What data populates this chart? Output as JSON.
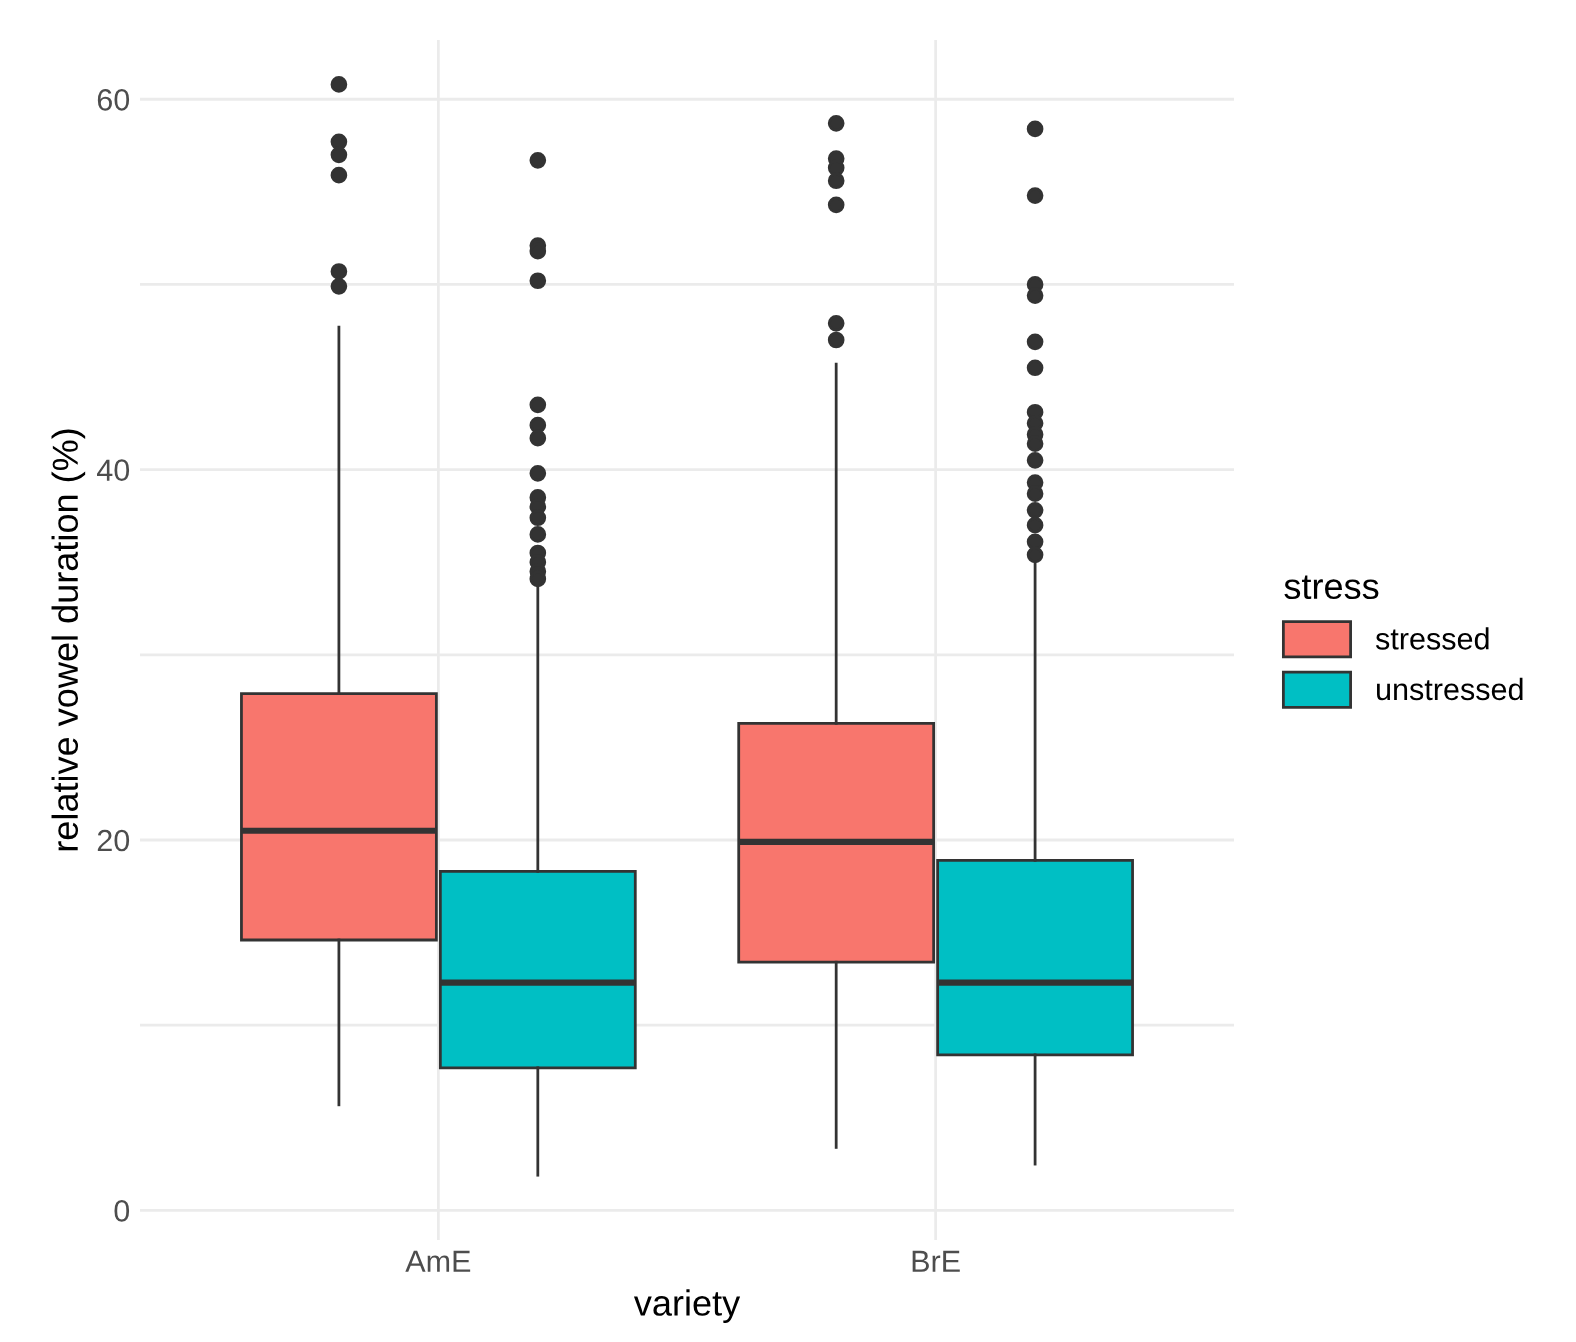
{
  "chart_data": {
    "type": "box",
    "xlabel": "variety",
    "ylabel": "relative vowel duration (%)",
    "legend_title": "stress",
    "legend": "right",
    "categories": [
      "AmE",
      "BrE"
    ],
    "ylim": [
      -1.6,
      63.2
    ],
    "yticks": [
      0,
      {
        "value": 10,
        "label": null
      },
      20,
      {
        "value": 30,
        "label": null
      },
      40,
      {
        "value": 50,
        "label": null
      },
      60
    ],
    "grid": true,
    "series": [
      {
        "name": "stressed",
        "color": "#f8766d",
        "boxes": [
          {
            "low": 5.7,
            "q1": 14.6,
            "median": 20.5,
            "q3": 27.9,
            "high": 47.7,
            "outliers": [
              60.8,
              57.7,
              57.0,
              55.9,
              50.7,
              49.9
            ]
          },
          {
            "low": 3.4,
            "q1": 13.4,
            "median": 19.9,
            "q3": 26.3,
            "high": 45.7,
            "outliers": [
              58.7,
              56.8,
              56.3,
              55.6,
              54.3,
              47.9,
              47.0
            ]
          }
        ]
      },
      {
        "name": "unstressed",
        "color": "#00bfc4",
        "boxes": [
          {
            "low": 1.9,
            "q1": 7.7,
            "median": 12.3,
            "q3": 18.3,
            "high": 33.9,
            "outliers": [
              56.7,
              52.1,
              51.8,
              50.2,
              43.5,
              42.4,
              41.7,
              39.8,
              38.5,
              38.0,
              37.4,
              36.5,
              35.5,
              35.0,
              34.5,
              34.1
            ]
          },
          {
            "low": 2.5,
            "q1": 8.4,
            "median": 12.3,
            "q3": 18.9,
            "high": 34.9,
            "outliers": [
              58.4,
              54.8,
              50.0,
              49.4,
              46.9,
              45.5,
              43.1,
              42.5,
              41.9,
              41.4,
              40.5,
              39.3,
              38.7,
              37.8,
              37.0,
              36.1,
              35.4
            ]
          }
        ]
      }
    ]
  }
}
